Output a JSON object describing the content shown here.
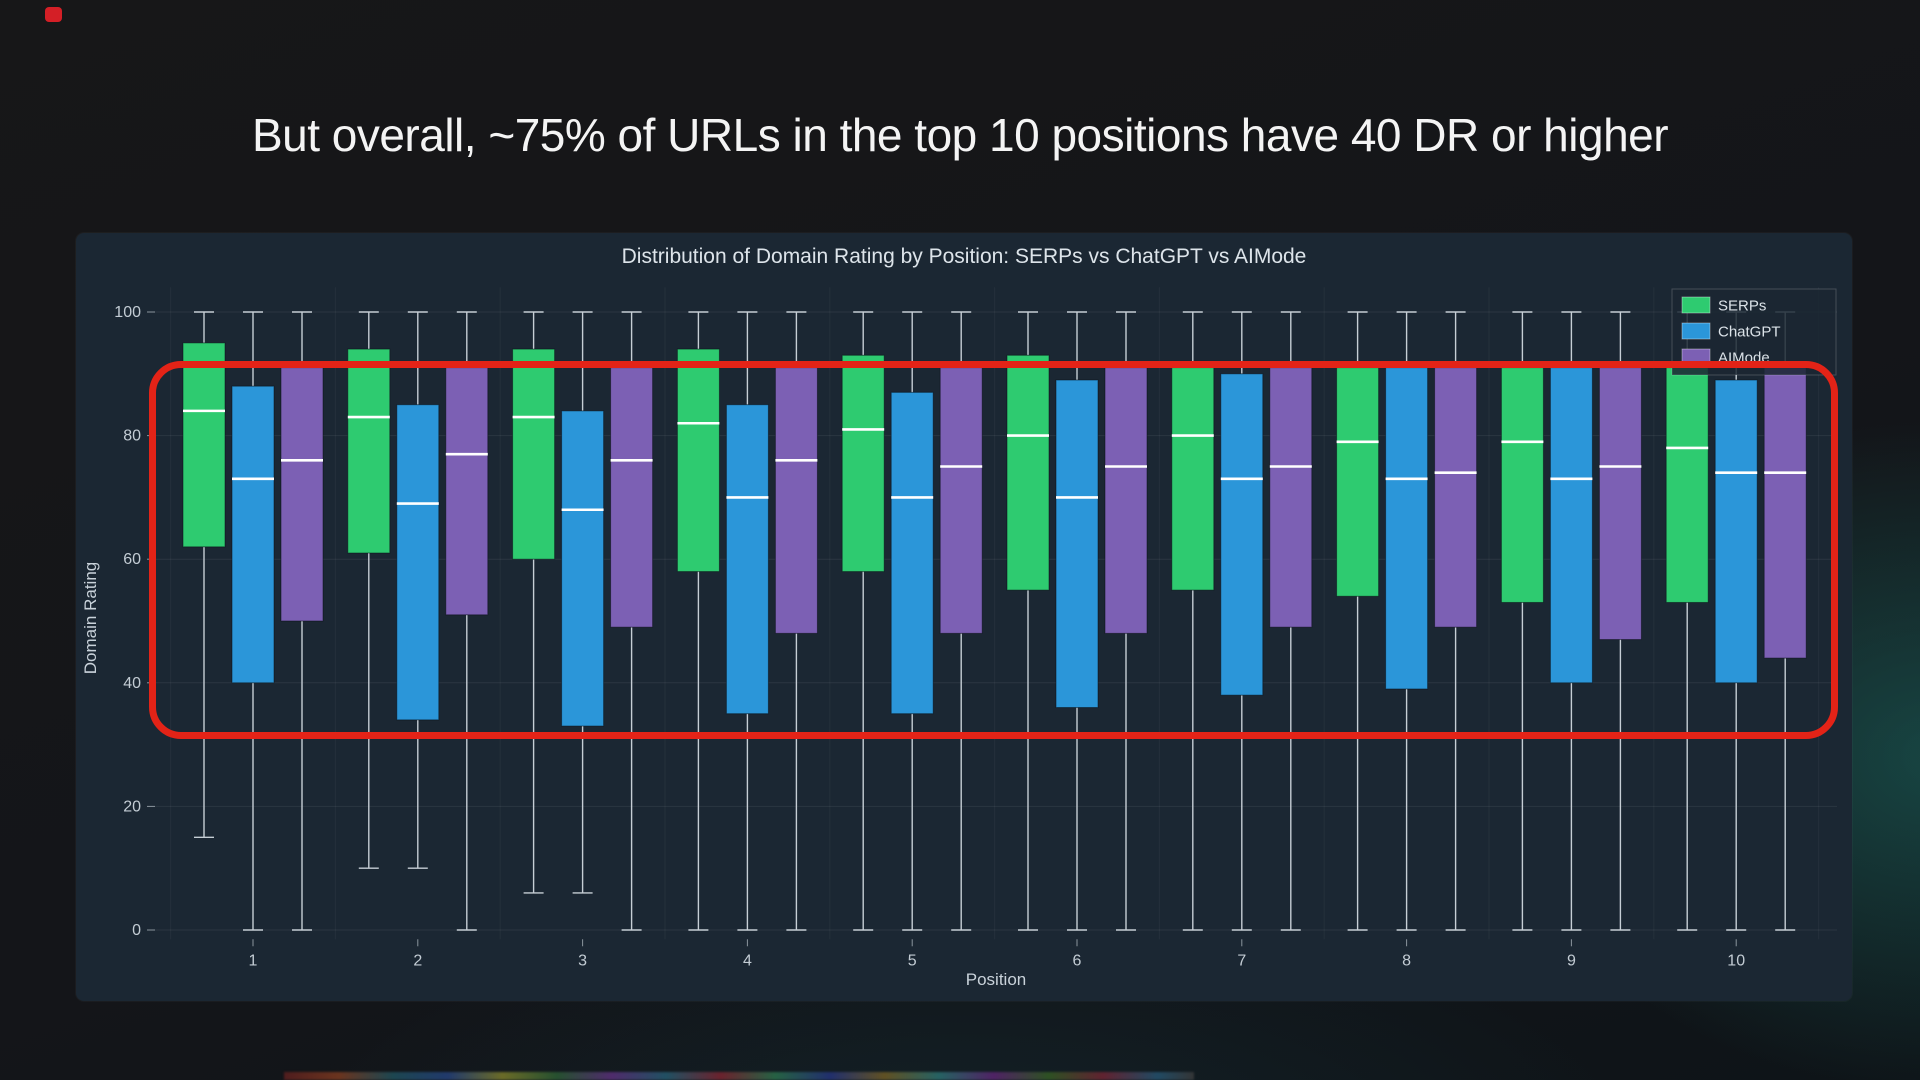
{
  "slide": {
    "heading": "But overall, ~75% of URLs in the top 10 positions have 40 DR or higher"
  },
  "colors": {
    "serps_green": "#2ecb70",
    "chatgpt_blue": "#2b96d9",
    "aimode_purple": "#7c60b4",
    "annotation_red": "#e32317",
    "panel_background": "#1b2733",
    "median_line": "#ffffff",
    "axis_text": "#c3ccd4"
  },
  "chart_data": {
    "type": "boxplot",
    "title": "Distribution of Domain Rating by Position: SERPs vs ChatGPT vs AIMode",
    "xlabel": "Position",
    "ylabel": "Domain Rating",
    "ylim": [
      0,
      100
    ],
    "yticks": [
      0,
      20,
      40,
      60,
      80,
      100
    ],
    "categories": [
      "1",
      "2",
      "3",
      "4",
      "5",
      "6",
      "7",
      "8",
      "9",
      "10"
    ],
    "legend_position": "top-right",
    "grid": true,
    "series": [
      {
        "name": "SERPs",
        "color": "#2ecb70",
        "boxes": [
          {
            "lo": 15,
            "q1": 62,
            "med": 84,
            "q3": 95,
            "hi": 100
          },
          {
            "lo": 10,
            "q1": 61,
            "med": 83,
            "q3": 94,
            "hi": 100
          },
          {
            "lo": 6,
            "q1": 60,
            "med": 83,
            "q3": 94,
            "hi": 100
          },
          {
            "lo": 0,
            "q1": 58,
            "med": 82,
            "q3": 94,
            "hi": 100
          },
          {
            "lo": 0,
            "q1": 58,
            "med": 81,
            "q3": 93,
            "hi": 100
          },
          {
            "lo": 0,
            "q1": 55,
            "med": 80,
            "q3": 93,
            "hi": 100
          },
          {
            "lo": 0,
            "q1": 55,
            "med": 80,
            "q3": 91,
            "hi": 100
          },
          {
            "lo": 0,
            "q1": 54,
            "med": 79,
            "q3": 91,
            "hi": 100
          },
          {
            "lo": 0,
            "q1": 53,
            "med": 79,
            "q3": 91,
            "hi": 100
          },
          {
            "lo": 0,
            "q1": 53,
            "med": 78,
            "q3": 91,
            "hi": 100
          }
        ]
      },
      {
        "name": "ChatGPT",
        "color": "#2b96d9",
        "boxes": [
          {
            "lo": 0,
            "q1": 40,
            "med": 73,
            "q3": 88,
            "hi": 100
          },
          {
            "lo": 10,
            "q1": 34,
            "med": 69,
            "q3": 85,
            "hi": 100
          },
          {
            "lo": 6,
            "q1": 33,
            "med": 68,
            "q3": 84,
            "hi": 100
          },
          {
            "lo": 0,
            "q1": 35,
            "med": 70,
            "q3": 85,
            "hi": 100
          },
          {
            "lo": 0,
            "q1": 35,
            "med": 70,
            "q3": 87,
            "hi": 100
          },
          {
            "lo": 0,
            "q1": 36,
            "med": 70,
            "q3": 89,
            "hi": 100
          },
          {
            "lo": 0,
            "q1": 38,
            "med": 73,
            "q3": 90,
            "hi": 100
          },
          {
            "lo": 0,
            "q1": 39,
            "med": 73,
            "q3": 91,
            "hi": 100
          },
          {
            "lo": 0,
            "q1": 40,
            "med": 73,
            "q3": 91,
            "hi": 100
          },
          {
            "lo": 0,
            "q1": 40,
            "med": 74,
            "q3": 89,
            "hi": 100
          }
        ]
      },
      {
        "name": "AIMode",
        "color": "#7c60b4",
        "boxes": [
          {
            "lo": 0,
            "q1": 50,
            "med": 76,
            "q3": 91,
            "hi": 100
          },
          {
            "lo": 0,
            "q1": 51,
            "med": 77,
            "q3": 91,
            "hi": 100
          },
          {
            "lo": 0,
            "q1": 49,
            "med": 76,
            "q3": 91,
            "hi": 100
          },
          {
            "lo": 0,
            "q1": 48,
            "med": 76,
            "q3": 91,
            "hi": 100
          },
          {
            "lo": 0,
            "q1": 48,
            "med": 75,
            "q3": 91,
            "hi": 100
          },
          {
            "lo": 0,
            "q1": 48,
            "med": 75,
            "q3": 91,
            "hi": 100
          },
          {
            "lo": 0,
            "q1": 49,
            "med": 75,
            "q3": 91,
            "hi": 100
          },
          {
            "lo": 0,
            "q1": 49,
            "med": 74,
            "q3": 91,
            "hi": 100
          },
          {
            "lo": 0,
            "q1": 47,
            "med": 75,
            "q3": 91,
            "hi": 100
          },
          {
            "lo": 0,
            "q1": 44,
            "med": 74,
            "q3": 91,
            "hi": 100
          }
        ]
      }
    ],
    "annotation": {
      "type": "rect",
      "color": "#e32317",
      "y_range": [
        31,
        92
      ],
      "meaning": "highlights that boxes (middle 50% of URLs) sit at 40+ DR across all 10 positions"
    }
  }
}
